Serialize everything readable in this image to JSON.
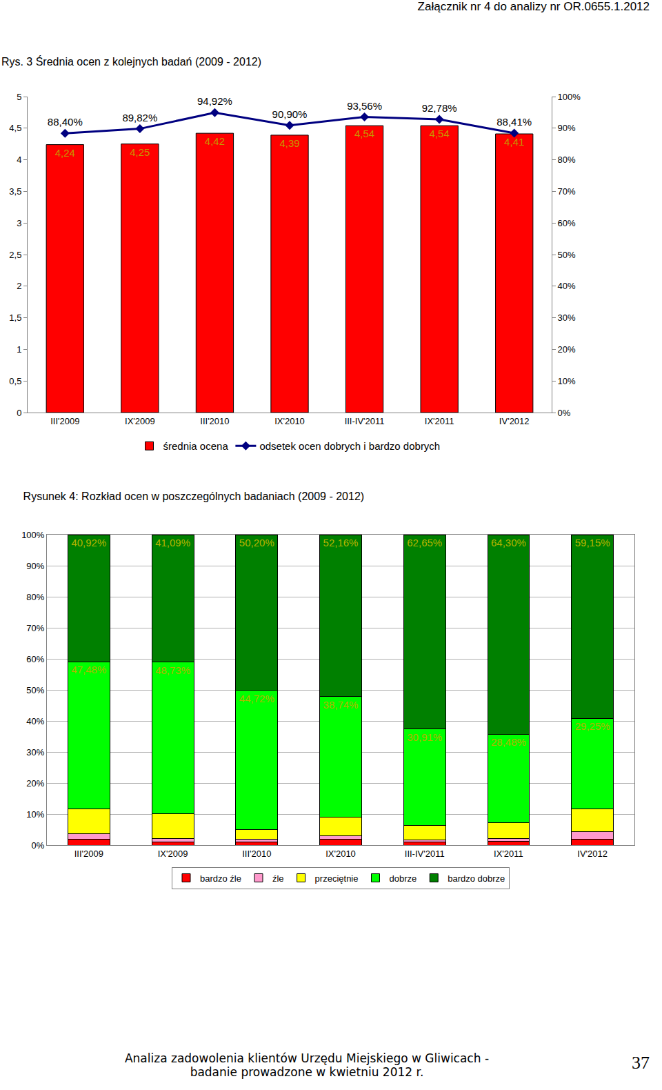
{
  "header": "Załącznik nr 4 do analizy nr OR.0655.1.2012",
  "footer": [
    "Analiza zadowolenia klientów Urzędu Miejskiego w Gliwicach -",
    "badanie prowadzone w kwietniu 2012 r."
  ],
  "page_number": "37",
  "chart_data": [
    {
      "type": "bar",
      "title": "Rys. 3 Średnia ocen z kolejnych badań (2009 - 2012)",
      "categories": [
        "III'2009",
        "IX'2009",
        "III'2010",
        "IX'2010",
        "III-IV'2011",
        "IX'2011",
        "IV'2012"
      ],
      "series": [
        {
          "name": "średnia ocena",
          "type": "bar",
          "color": "#ff0000",
          "values": [
            4.24,
            4.25,
            4.42,
            4.39,
            4.54,
            4.54,
            4.41
          ],
          "value_labels": [
            "4,24",
            "4,25",
            "4,42",
            "4,39",
            "4,54",
            "4,54",
            "4,41"
          ]
        },
        {
          "name": "odsetek ocen dobrych i bardzo dobrych",
          "type": "line",
          "axis": "y2",
          "color": "#000080",
          "marker": "diamond",
          "values": [
            88.4,
            89.82,
            94.92,
            90.9,
            93.56,
            92.78,
            88.41
          ],
          "value_labels": [
            "88,40%",
            "89,82%",
            "94,92%",
            "90,90%",
            "93,56%",
            "92,78%",
            "88,41%"
          ]
        }
      ],
      "ylim": [
        0,
        5
      ],
      "yticks": [
        0,
        {
          "value": 0.5,
          "label": "0,5"
        },
        1,
        {
          "value": 1.5,
          "label": "1,5"
        },
        2,
        {
          "value": 2.5,
          "label": "2,5"
        },
        3,
        {
          "value": 3.5,
          "label": "3,5"
        },
        4,
        {
          "value": 4.5,
          "label": "4,5"
        },
        5
      ],
      "y2lim": [
        0,
        100
      ],
      "y2ticks": [
        {
          "value": 0,
          "label": "0%"
        },
        {
          "value": 10,
          "label": "10%"
        },
        {
          "value": 20,
          "label": "20%"
        },
        {
          "value": 30,
          "label": "30%"
        },
        {
          "value": 40,
          "label": "40%"
        },
        {
          "value": 50,
          "label": "50%"
        },
        {
          "value": 60,
          "label": "60%"
        },
        {
          "value": 70,
          "label": "70%"
        },
        {
          "value": 80,
          "label": "80%"
        },
        {
          "value": 90,
          "label": "90%"
        },
        {
          "value": 100,
          "label": "100%"
        }
      ],
      "grid": false,
      "legend": "bottom",
      "data_labels": true
    },
    {
      "type": "bar",
      "title": "Rysunek 4: Rozkład ocen w poszczególnych badaniach (2009 - 2012)",
      "categories": [
        "III'2009",
        "IX'2009",
        "III'2010",
        "IX'2010",
        "III-IV'2011",
        "IX'2011",
        "IV'2012"
      ],
      "stacked": true,
      "series": [
        {
          "name": "bardzo źle",
          "color": "#ff0000",
          "values": [
            1.9,
            1.0,
            0.9,
            1.8,
            0.9,
            1.22,
            2.0
          ]
        },
        {
          "name": "źle",
          "color": "#ff99cc",
          "values": [
            1.7,
            1.2,
            0.9,
            1.1,
            0.8,
            1.0,
            2.3
          ]
        },
        {
          "name": "przeciętnie",
          "color": "#ffff00",
          "values": [
            8.0,
            7.98,
            3.28,
            6.2,
            4.74,
            5.0,
            7.3
          ]
        },
        {
          "name": "dobrze",
          "color": "#00ff00",
          "data_labels": true,
          "values": [
            47.48,
            48.73,
            44.72,
            38.74,
            30.91,
            28.48,
            29.25
          ],
          "value_labels": [
            "47,48%",
            "48,73%",
            "44,72%",
            "38,74%",
            "30,91%",
            "28,48%",
            "29,25%"
          ]
        },
        {
          "name": "bardzo dobrze",
          "color": "#008000",
          "data_labels": true,
          "values": [
            40.92,
            41.09,
            50.2,
            52.16,
            62.65,
            64.3,
            59.15
          ],
          "value_labels": [
            "40,92%",
            "41,09%",
            "50,20%",
            "52,16%",
            "62,65%",
            "64,30%",
            "59,15%"
          ]
        }
      ],
      "ylim": [
        0,
        100
      ],
      "yticks": [
        {
          "value": 0,
          "label": "0%"
        },
        {
          "value": 10,
          "label": "10%"
        },
        {
          "value": 20,
          "label": "20%"
        },
        {
          "value": 30,
          "label": "30%"
        },
        {
          "value": 40,
          "label": "40%"
        },
        {
          "value": 50,
          "label": "50%"
        },
        {
          "value": 60,
          "label": "60%"
        },
        {
          "value": 70,
          "label": "70%"
        },
        {
          "value": 80,
          "label": "80%"
        },
        {
          "value": 90,
          "label": "90%"
        },
        {
          "value": 100,
          "label": "100%"
        }
      ],
      "grid": true,
      "legend": "bottom"
    }
  ]
}
